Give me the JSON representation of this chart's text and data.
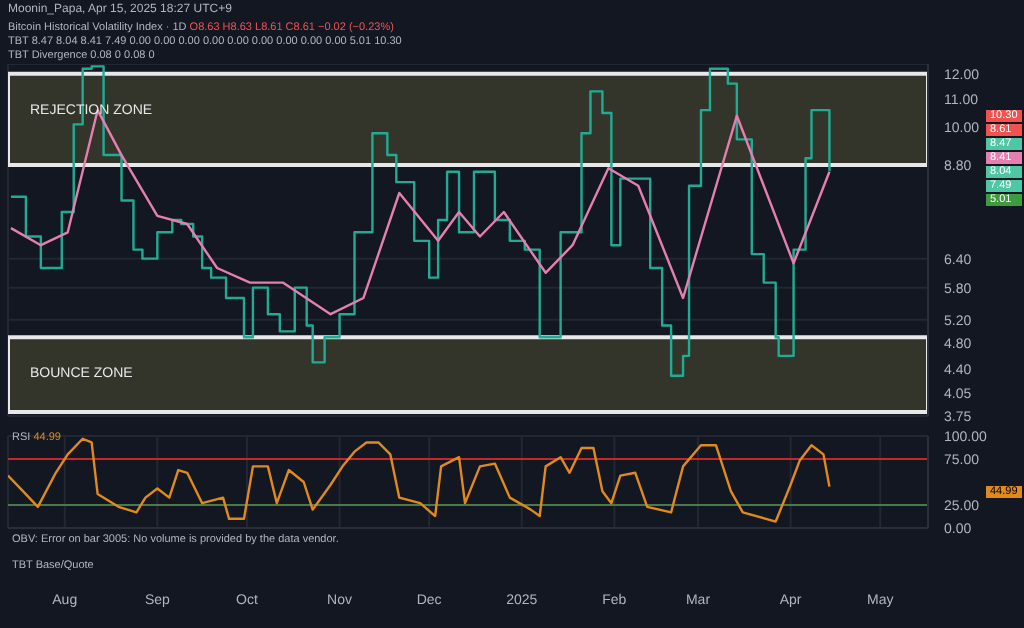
{
  "chart_data": [
    {
      "type": "line",
      "title": "Bitcoin Historical Volatility Index · 1D",
      "annotations": [
        "Moonin_Papa, Apr 15, 2025 18:27 UTC+9",
        "O8.63 H8.63 L8.61 C8.61 −0.02 (−0.23%)",
        "TBT 8.47 8.04 8.41 7.49 0.00 0.00 0.00 0.00 0.00 0.00 0.00 0.00 0.00 5.01 10.30",
        "TBT Divergence 0.08 0 0.08 0",
        "10.30",
        "8.61",
        "8.47",
        "8.41",
        "8.04",
        "7.49",
        "5.01"
      ],
      "log": "y",
      "grid": true,
      "tick_labels": "y",
      "xlim": [
        "2024-07-13",
        "2025-05-17"
      ],
      "ylim": [
        3.75,
        12.4
      ],
      "yticks": [
        {
          "value": 12,
          "label": "12.00"
        },
        {
          "value": 11,
          "label": "11.00"
        },
        {
          "value": 10,
          "label": "10.00"
        },
        {
          "value": 8.8,
          "label": "8.80"
        },
        {
          "value": 6.4,
          "label": "6.40"
        },
        {
          "value": 5.8,
          "label": "5.80"
        },
        {
          "value": 5.2,
          "label": "5.20"
        },
        {
          "value": 4.8,
          "label": "4.80"
        },
        {
          "value": 4.4,
          "label": "4.40"
        },
        {
          "value": 4.05,
          "label": "4.05"
        },
        {
          "value": 3.75,
          "label": "3.75"
        }
      ],
      "bands": [
        {
          "axis": "y",
          "from": 8.8,
          "to": 12.0,
          "label": "REJECTION ZONE",
          "color": "#33352a"
        },
        {
          "axis": "y",
          "from": 3.8,
          "to": 4.9,
          "label": "BOUNCE ZONE",
          "color": "#33352a"
        }
      ],
      "series": [
        {
          "type": "step",
          "color": "#22ab94",
          "x": [
            "2024-07-14",
            "2024-07-19",
            "2024-07-24",
            "2024-07-31",
            "2024-08-04",
            "2024-08-07",
            "2024-08-10",
            "2024-08-14",
            "2024-08-20",
            "2024-08-24",
            "2024-08-27",
            "2024-09-01",
            "2024-09-06",
            "2024-09-09",
            "2024-09-13",
            "2024-09-16",
            "2024-09-19",
            "2024-09-24",
            "2024-09-30",
            "2024-10-03",
            "2024-10-08",
            "2024-10-12",
            "2024-10-17",
            "2024-10-21",
            "2024-10-23",
            "2024-10-27",
            "2024-11-01",
            "2024-11-06",
            "2024-11-12",
            "2024-11-17",
            "2024-11-20",
            "2024-11-26",
            "2024-12-01",
            "2024-12-04",
            "2024-12-07",
            "2024-12-11",
            "2024-12-16",
            "2024-12-19",
            "2024-12-23",
            "2024-12-28",
            "2025-01-02",
            "2025-01-07",
            "2025-01-14",
            "2025-01-21",
            "2025-01-24",
            "2025-01-28",
            "2025-01-31",
            "2025-02-03",
            "2025-02-09",
            "2025-02-13",
            "2025-02-17",
            "2025-02-20",
            "2025-02-24",
            "2025-02-26",
            "2025-03-02",
            "2025-03-05",
            "2025-03-11",
            "2025-03-14",
            "2025-03-19",
            "2025-03-23",
            "2025-03-27",
            "2025-03-28",
            "2025-04-02",
            "2025-04-06",
            "2025-04-08",
            "2025-04-12",
            "2025-04-14"
          ],
          "values": [
            7.9,
            6.9,
            6.2,
            7.5,
            10.1,
            12.2,
            12.3,
            9.1,
            7.8,
            6.6,
            6.4,
            7.0,
            7.3,
            7.2,
            6.9,
            6.2,
            6.0,
            5.6,
            4.9,
            5.8,
            5.3,
            5.0,
            5.8,
            5.1,
            4.5,
            4.9,
            5.3,
            7.0,
            9.8,
            9.1,
            8.3,
            6.8,
            6.0,
            7.3,
            8.6,
            7.0,
            8.6,
            8.6,
            7.3,
            6.8,
            6.6,
            4.9,
            7.0,
            9.8,
            11.3,
            10.5,
            6.7,
            8.4,
            8.4,
            6.2,
            5.1,
            4.3,
            4.6,
            8.2,
            10.6,
            12.2,
            11.6,
            9.6,
            6.5,
            5.9,
            4.9,
            4.6,
            6.6,
            9.0,
            10.6,
            10.6,
            8.61
          ]
        },
        {
          "type": "line",
          "color": "#e57fb0",
          "x": [
            "2024-07-14",
            "2024-07-24",
            "2024-08-02",
            "2024-08-12",
            "2024-08-20",
            "2024-09-01",
            "2024-09-11",
            "2024-09-21",
            "2024-10-02",
            "2024-10-13",
            "2024-10-29",
            "2024-11-09",
            "2024-11-21",
            "2024-12-04",
            "2024-12-11",
            "2024-12-18",
            "2024-12-26",
            "2025-01-09",
            "2025-01-18",
            "2025-01-30",
            "2025-02-09",
            "2025-02-24",
            "2025-03-14",
            "2025-04-02",
            "2025-04-14"
          ],
          "values": [
            7.1,
            6.7,
            7.0,
            10.6,
            9.1,
            7.4,
            7.2,
            6.2,
            5.9,
            5.9,
            5.3,
            5.6,
            8.0,
            6.8,
            7.5,
            6.9,
            7.5,
            6.1,
            6.7,
            8.7,
            8.2,
            5.6,
            10.4,
            6.3,
            8.6
          ]
        }
      ]
    },
    {
      "type": "line",
      "title": "RSI",
      "annotations": [
        "44.99",
        "OBV: Error on bar 3005: No volume is provided by the data vendor.",
        "TBT Base/Quote"
      ],
      "grid": true,
      "tick_labels": "xy",
      "xlim": [
        "2024-07-13",
        "2025-05-17"
      ],
      "xticks": [
        {
          "value": "2024-08-01",
          "label": "Aug"
        },
        {
          "value": "2024-09-01",
          "label": "Sep"
        },
        {
          "value": "2024-10-01",
          "label": "Oct"
        },
        {
          "value": "2024-11-01",
          "label": "Nov"
        },
        {
          "value": "2024-12-01",
          "label": "Dec"
        },
        {
          "value": "2025-01-01",
          "label": "2025"
        },
        {
          "value": "2025-02-01",
          "label": "Feb"
        },
        {
          "value": "2025-03-01",
          "label": "Mar"
        },
        {
          "value": "2025-04-01",
          "label": "Apr"
        },
        {
          "value": "2025-05-01",
          "label": "May"
        }
      ],
      "ylim": [
        0,
        100
      ],
      "yticks": [
        {
          "value": 0,
          "label": "0.00"
        },
        {
          "value": 25,
          "label": "25.00"
        },
        {
          "value": 75,
          "label": "75.00"
        },
        {
          "value": 100,
          "label": "100.00"
        }
      ],
      "ref_lines": [
        {
          "axis": "y",
          "value": 75,
          "color": "#c62828"
        },
        {
          "axis": "y",
          "value": 25,
          "color": "#4a7a4a"
        }
      ],
      "series": [
        {
          "color": "#e08a1e",
          "x": [
            "2024-07-13",
            "2024-07-18",
            "2024-07-23",
            "2024-07-29",
            "2024-08-02",
            "2024-08-07",
            "2024-08-10",
            "2024-08-12",
            "2024-08-19",
            "2024-08-25",
            "2024-08-28",
            "2024-09-01",
            "2024-09-05",
            "2024-09-08",
            "2024-09-11",
            "2024-09-16",
            "2024-09-23",
            "2024-09-25",
            "2024-09-30",
            "2024-10-03",
            "2024-10-08",
            "2024-10-11",
            "2024-10-15",
            "2024-10-20",
            "2024-10-23",
            "2024-10-29",
            "2024-11-02",
            "2024-11-06",
            "2024-11-10",
            "2024-11-14",
            "2024-11-18",
            "2024-11-21",
            "2024-11-28",
            "2024-12-03",
            "2024-12-05",
            "2024-12-11",
            "2024-12-13",
            "2024-12-18",
            "2024-12-23",
            "2024-12-28",
            "2025-01-04",
            "2025-01-07",
            "2025-01-09",
            "2025-01-14",
            "2025-01-17",
            "2025-01-21",
            "2025-01-25",
            "2025-01-28",
            "2025-01-31",
            "2025-02-03",
            "2025-02-08",
            "2025-02-12",
            "2025-02-20",
            "2025-02-24",
            "2025-03-02",
            "2025-03-07",
            "2025-03-12",
            "2025-03-16",
            "2025-03-27",
            "2025-04-01",
            "2025-04-04",
            "2025-04-08",
            "2025-04-12",
            "2025-04-14"
          ],
          "values": [
            57,
            40,
            23,
            60,
            80,
            97,
            93,
            37,
            23,
            17,
            33,
            43,
            33,
            63,
            60,
            27,
            33,
            10,
            10,
            67,
            67,
            27,
            63,
            50,
            20,
            47,
            67,
            83,
            93,
            93,
            80,
            33,
            27,
            13,
            67,
            77,
            27,
            67,
            70,
            33,
            20,
            13,
            67,
            77,
            60,
            87,
            87,
            40,
            27,
            57,
            60,
            23,
            17,
            67,
            90,
            90,
            40,
            17,
            7,
            47,
            73,
            90,
            80,
            45
          ]
        }
      ]
    }
  ]
}
